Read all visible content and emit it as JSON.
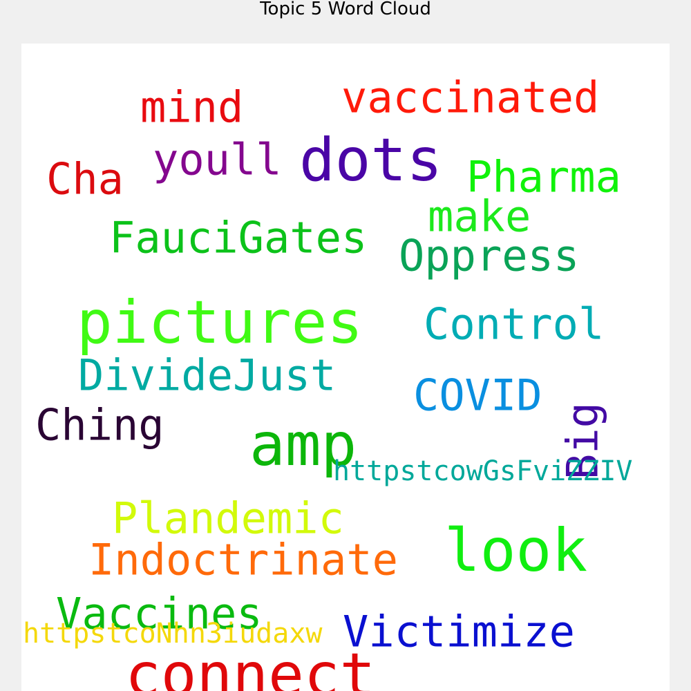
{
  "chart_data": {
    "type": "wordcloud",
    "title": "Topic 5 Word Cloud",
    "background": "#ffffff",
    "words": [
      {
        "text": "vaccinated",
        "color": "#ff1a0a"
      },
      {
        "text": "mind",
        "color": "#e80b10"
      },
      {
        "text": "youll",
        "color": "#84078e"
      },
      {
        "text": "dots",
        "color": "#4a05a6"
      },
      {
        "text": "Cha",
        "color": "#db0b0f"
      },
      {
        "text": "Pharma",
        "color": "#10f20a"
      },
      {
        "text": "make",
        "color": "#1ce91c"
      },
      {
        "text": "FauciGates",
        "color": "#0cc21a"
      },
      {
        "text": "Oppress",
        "color": "#0aa357"
      },
      {
        "text": "pictures",
        "color": "#40fa14"
      },
      {
        "text": "Control",
        "color": "#00acb4"
      },
      {
        "text": "DivideJust",
        "color": "#00aaa2"
      },
      {
        "text": "COVID",
        "color": "#0a8fe0"
      },
      {
        "text": "Big",
        "color": "#430aa4"
      },
      {
        "text": "Ching",
        "color": "#2a0534"
      },
      {
        "text": "amp",
        "color": "#0cb60a"
      },
      {
        "text": "httpstcowGsFviZZIV",
        "color": "#00a89a"
      },
      {
        "text": "Plandemic",
        "color": "#d2fa0a"
      },
      {
        "text": "look",
        "color": "#10ee10"
      },
      {
        "text": "Indoctrinate",
        "color": "#ff6a0a"
      },
      {
        "text": "Vaccines",
        "color": "#0aba10"
      },
      {
        "text": "Victimize",
        "color": "#0a10d0"
      },
      {
        "text": "httpstcoNhn3iudaxw",
        "color": "#f4d80a"
      },
      {
        "text": "connect",
        "color": "#e0080a"
      }
    ]
  }
}
